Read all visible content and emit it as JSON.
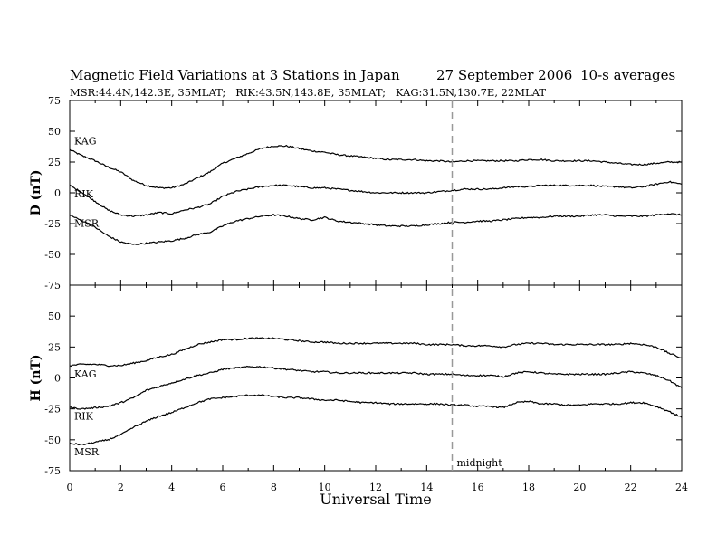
{
  "chart_data": {
    "type": "line",
    "title": "Magnetic Field Variations at 3 Stations in Japan",
    "date": "27 September 2006",
    "averaging": "10-s averages",
    "subtitle": "MSR:44.4N,142.3E, 35MLAT;   RIK:43.5N,143.8E, 35MLAT;   KAG:31.5N,130.7E, 22MLAT",
    "xlabel": "Universal Time",
    "xlim": [
      0,
      24
    ],
    "x_ticks": [
      "0",
      "2",
      "4",
      "6",
      "8",
      "10",
      "12",
      "14",
      "16",
      "18",
      "20",
      "22",
      "24"
    ],
    "grid": false,
    "annotation": {
      "x": 15,
      "text": "midnight"
    },
    "panels": [
      {
        "ylabel": "D (nT)",
        "ylim": [
          -75,
          75
        ],
        "y_ticks": [
          "75",
          "50",
          "25",
          "0",
          "-25",
          "-50",
          "-75"
        ],
        "series": [
          {
            "name": "KAG",
            "x": [
              0,
              0.5,
              1,
              1.5,
              2,
              2.5,
              3,
              3.5,
              4,
              4.5,
              5,
              5.5,
              6,
              6.5,
              7,
              7.5,
              8,
              8.5,
              9,
              9.5,
              10,
              10.5,
              11,
              11.5,
              12,
              12.5,
              13,
              13.5,
              14,
              14.5,
              15,
              15.5,
              16,
              16.5,
              17,
              17.5,
              18,
              18.5,
              19,
              19.5,
              20,
              20.5,
              21,
              21.5,
              22,
              22.5,
              23,
              23.5,
              24
            ],
            "values": [
              35,
              30,
              26,
              21,
              17,
              10,
              6,
              4,
              4,
              7,
              12,
              17,
              24,
              28,
              32,
              36,
              38,
              38,
              36,
              34,
              33,
              31,
              30,
              29,
              28,
              27,
              27,
              27,
              26,
              26,
              25,
              26,
              26,
              26,
              26,
              26,
              27,
              27,
              26,
              26,
              26,
              26,
              25,
              24,
              23,
              23,
              24,
              25,
              25
            ]
          },
          {
            "name": "RIK",
            "x": [
              0,
              0.5,
              1,
              1.5,
              2,
              2.5,
              3,
              3.5,
              4,
              4.5,
              5,
              5.5,
              6,
              6.5,
              7,
              7.5,
              8,
              8.5,
              9,
              9.5,
              10,
              10.5,
              11,
              11.5,
              12,
              12.5,
              13,
              13.5,
              14,
              14.5,
              15,
              15.5,
              16,
              16.5,
              17,
              17.5,
              18,
              18.5,
              19,
              19.5,
              20,
              20.5,
              21,
              21.5,
              22,
              22.5,
              23,
              23.5,
              24
            ],
            "values": [
              6,
              0,
              -7,
              -14,
              -18,
              -19,
              -18,
              -16,
              -17,
              -14,
              -12,
              -9,
              -3,
              1,
              3,
              5,
              6,
              6,
              5,
              4,
              4,
              3,
              2,
              1,
              0,
              0,
              0,
              0,
              0,
              1,
              2,
              3,
              3,
              3,
              4,
              5,
              5,
              6,
              6,
              6,
              6,
              6,
              5,
              5,
              4,
              5,
              7,
              9,
              7
            ]
          },
          {
            "name": "MSR",
            "x": [
              0,
              0.5,
              1,
              1.5,
              2,
              2.5,
              3,
              3.5,
              4,
              4.5,
              5,
              5.5,
              6,
              6.5,
              7,
              7.5,
              8,
              8.5,
              9,
              9.5,
              10,
              10.5,
              11,
              11.5,
              12,
              12.5,
              13,
              13.5,
              14,
              14.5,
              15,
              15.5,
              16,
              16.5,
              17,
              17.5,
              18,
              18.5,
              19,
              19.5,
              20,
              20.5,
              21,
              21.5,
              22,
              22.5,
              23,
              23.5,
              24
            ],
            "values": [
              -18,
              -23,
              -28,
              -35,
              -40,
              -42,
              -41,
              -40,
              -39,
              -37,
              -34,
              -32,
              -27,
              -23,
              -21,
              -19,
              -18,
              -19,
              -21,
              -22,
              -20,
              -23,
              -24,
              -25,
              -26,
              -27,
              -27,
              -27,
              -26,
              -25,
              -24,
              -24,
              -23,
              -23,
              -22,
              -21,
              -20,
              -20,
              -19,
              -19,
              -19,
              -18,
              -18,
              -19,
              -19,
              -19,
              -18,
              -17,
              -18
            ]
          }
        ]
      },
      {
        "ylabel": "H (nT)",
        "ylim": [
          -75,
          75
        ],
        "y_ticks": [
          "75",
          "50",
          "25",
          "0",
          "-25",
          "-50",
          "-75"
        ],
        "series": [
          {
            "name": "KAG",
            "x": [
              0,
              0.5,
              1,
              1.5,
              2,
              2.5,
              3,
              3.5,
              4,
              4.5,
              5,
              5.5,
              6,
              6.5,
              7,
              7.5,
              8,
              8.5,
              9,
              9.5,
              10,
              10.5,
              11,
              11.5,
              12,
              12.5,
              13,
              13.5,
              14,
              14.5,
              15,
              15.5,
              16,
              16.5,
              17,
              17.5,
              18,
              18.5,
              19,
              19.5,
              20,
              20.5,
              21,
              21.5,
              22,
              22.5,
              23,
              23.5,
              24
            ],
            "values": [
              10,
              11,
              11,
              10,
              10,
              12,
              14,
              17,
              19,
              23,
              27,
              29,
              31,
              31,
              32,
              32,
              32,
              31,
              30,
              29,
              29,
              28,
              28,
              28,
              28,
              28,
              28,
              28,
              27,
              27,
              27,
              26,
              26,
              26,
              25,
              27,
              28,
              28,
              27,
              27,
              27,
              27,
              27,
              27,
              28,
              27,
              25,
              20,
              16
            ]
          },
          {
            "name": "RIK",
            "x": [
              0,
              0.5,
              1,
              1.5,
              2,
              2.5,
              3,
              3.5,
              4,
              4.5,
              5,
              5.5,
              6,
              6.5,
              7,
              7.5,
              8,
              8.5,
              9,
              9.5,
              10,
              10.5,
              11,
              11.5,
              12,
              12.5,
              13,
              13.5,
              14,
              14.5,
              15,
              15.5,
              16,
              16.5,
              17,
              17.5,
              18,
              18.5,
              19,
              19.5,
              20,
              20.5,
              21,
              21.5,
              22,
              22.5,
              23,
              23.5,
              24
            ],
            "values": [
              -24,
              -25,
              -24,
              -23,
              -20,
              -16,
              -10,
              -7,
              -4,
              -1,
              2,
              4,
              7,
              8,
              9,
              9,
              8,
              7,
              6,
              5,
              5,
              4,
              4,
              4,
              4,
              4,
              4,
              4,
              3,
              3,
              3,
              2,
              2,
              2,
              1,
              4,
              5,
              4,
              3,
              3,
              3,
              3,
              3,
              4,
              5,
              4,
              2,
              -2,
              -8
            ]
          },
          {
            "name": "MSR",
            "x": [
              0,
              0.5,
              1,
              1.5,
              2,
              2.5,
              3,
              3.5,
              4,
              4.5,
              5,
              5.5,
              6,
              6.5,
              7,
              7.5,
              8,
              8.5,
              9,
              9.5,
              10,
              10.5,
              11,
              11.5,
              12,
              12.5,
              13,
              13.5,
              14,
              14.5,
              15,
              15.5,
              16,
              16.5,
              17,
              17.5,
              18,
              18.5,
              19,
              19.5,
              20,
              20.5,
              21,
              21.5,
              22,
              22.5,
              23,
              23.5,
              24
            ],
            "values": [
              -53,
              -54,
              -52,
              -50,
              -46,
              -40,
              -35,
              -31,
              -28,
              -24,
              -20,
              -17,
              -16,
              -15,
              -14,
              -14,
              -15,
              -16,
              -16,
              -17,
              -18,
              -18,
              -19,
              -20,
              -20,
              -21,
              -21,
              -21,
              -21,
              -21,
              -22,
              -22,
              -23,
              -23,
              -24,
              -20,
              -19,
              -21,
              -21,
              -22,
              -22,
              -21,
              -21,
              -21,
              -20,
              -20,
              -23,
              -27,
              -32
            ]
          }
        ]
      }
    ]
  }
}
